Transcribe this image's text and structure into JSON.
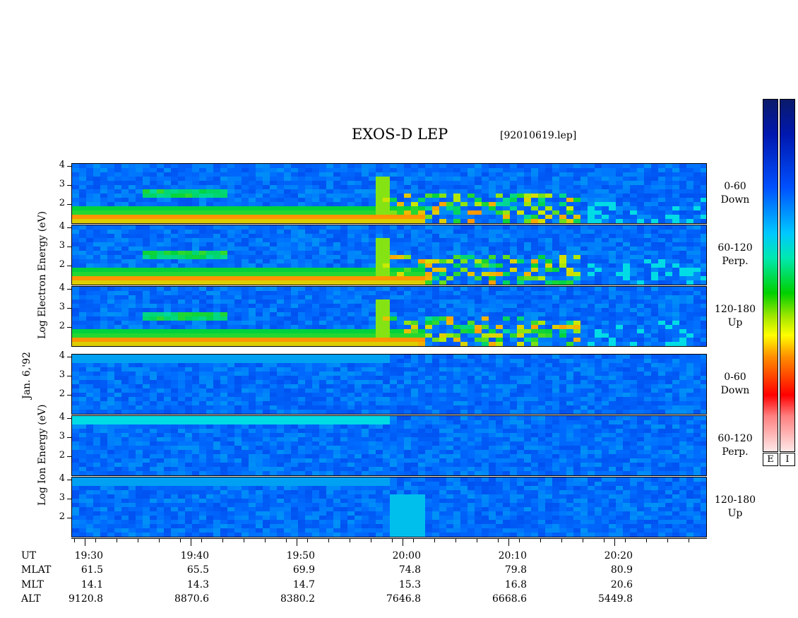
{
  "chart_data": {
    "type": "heatmap",
    "title": "EXOS-D LEP",
    "file_label": "[92010619.lep]",
    "date_label": "Jan. 6,'92",
    "electron_axis_label": [
      "Log",
      "Electron",
      "Energy",
      "(eV)"
    ],
    "ion_axis_label": [
      "Log",
      "Ion",
      "Energy",
      "(eV)"
    ],
    "y_ticks": [
      "4",
      "3",
      "2"
    ],
    "panels": [
      {
        "species": "electron",
        "pitch_range": "0-60",
        "direction": "Down"
      },
      {
        "species": "electron",
        "pitch_range": "60-120",
        "direction": "Perp."
      },
      {
        "species": "electron",
        "pitch_range": "120-180",
        "direction": "Up"
      },
      {
        "species": "ion",
        "pitch_range": "0-60",
        "direction": "Down"
      },
      {
        "species": "ion",
        "pitch_range": "60-120",
        "direction": "Perp."
      },
      {
        "species": "ion",
        "pitch_range": "120-180",
        "direction": "Up"
      }
    ],
    "colorbar_labels": [
      "E",
      "I"
    ],
    "x_rows": [
      {
        "label": "UT",
        "values": [
          "19:30",
          "19:40",
          "19:50",
          "20:00",
          "20:10",
          "20:20"
        ]
      },
      {
        "label": "MLAT",
        "values": [
          "61.5",
          "65.5",
          "69.9",
          "74.8",
          "79.8",
          "80.9"
        ]
      },
      {
        "label": "MLT",
        "values": [
          "14.1",
          "14.3",
          "14.7",
          "15.3",
          "16.8",
          "20.6"
        ]
      },
      {
        "label": "ALT",
        "values": [
          "9120.8",
          "8870.6",
          "8380.2",
          "7646.8",
          "6668.6",
          "5449.8"
        ]
      }
    ]
  }
}
